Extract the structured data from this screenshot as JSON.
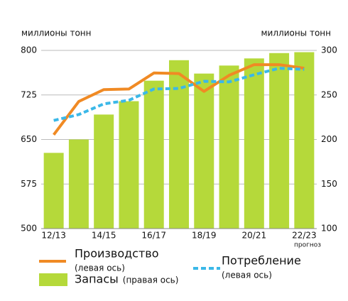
{
  "chart_data": {
    "type": "bar-line",
    "y_label": "миллионы тонн",
    "y2_label": "миллионы тонн",
    "annotation": "прогноз",
    "categories": [
      "12/13",
      null,
      "14/15",
      null,
      "16/17",
      null,
      "18/19",
      null,
      "20/21",
      null,
      "22/23"
    ],
    "ylim": [
      500,
      800
    ],
    "yticks": [
      500,
      575,
      650,
      725,
      800
    ],
    "y2lim": [
      100,
      300
    ],
    "y2ticks": [
      100,
      150,
      200,
      250,
      300
    ],
    "grid": true,
    "series": [
      {
        "name": "Производство",
        "axis_note": "(левая ось)",
        "kind": "line",
        "color": "#f08a24",
        "values": [
          658,
          714,
          734,
          735,
          762,
          761,
          731,
          758,
          776,
          776,
          770
        ]
      },
      {
        "name": "Потребление",
        "axis_note": "(левая ось)",
        "kind": "dashed-line",
        "color": "#3bb8e8",
        "values": [
          682,
          692,
          710,
          716,
          735,
          736,
          748,
          747,
          759,
          770,
          768
        ]
      },
      {
        "name": "Запасы",
        "axis_note": "(правая ось)",
        "kind": "bar",
        "axis": "y2",
        "color": "#b5d93a",
        "values": [
          185,
          200,
          228,
          243,
          266,
          289,
          274,
          283,
          291,
          297,
          298
        ]
      }
    ]
  }
}
